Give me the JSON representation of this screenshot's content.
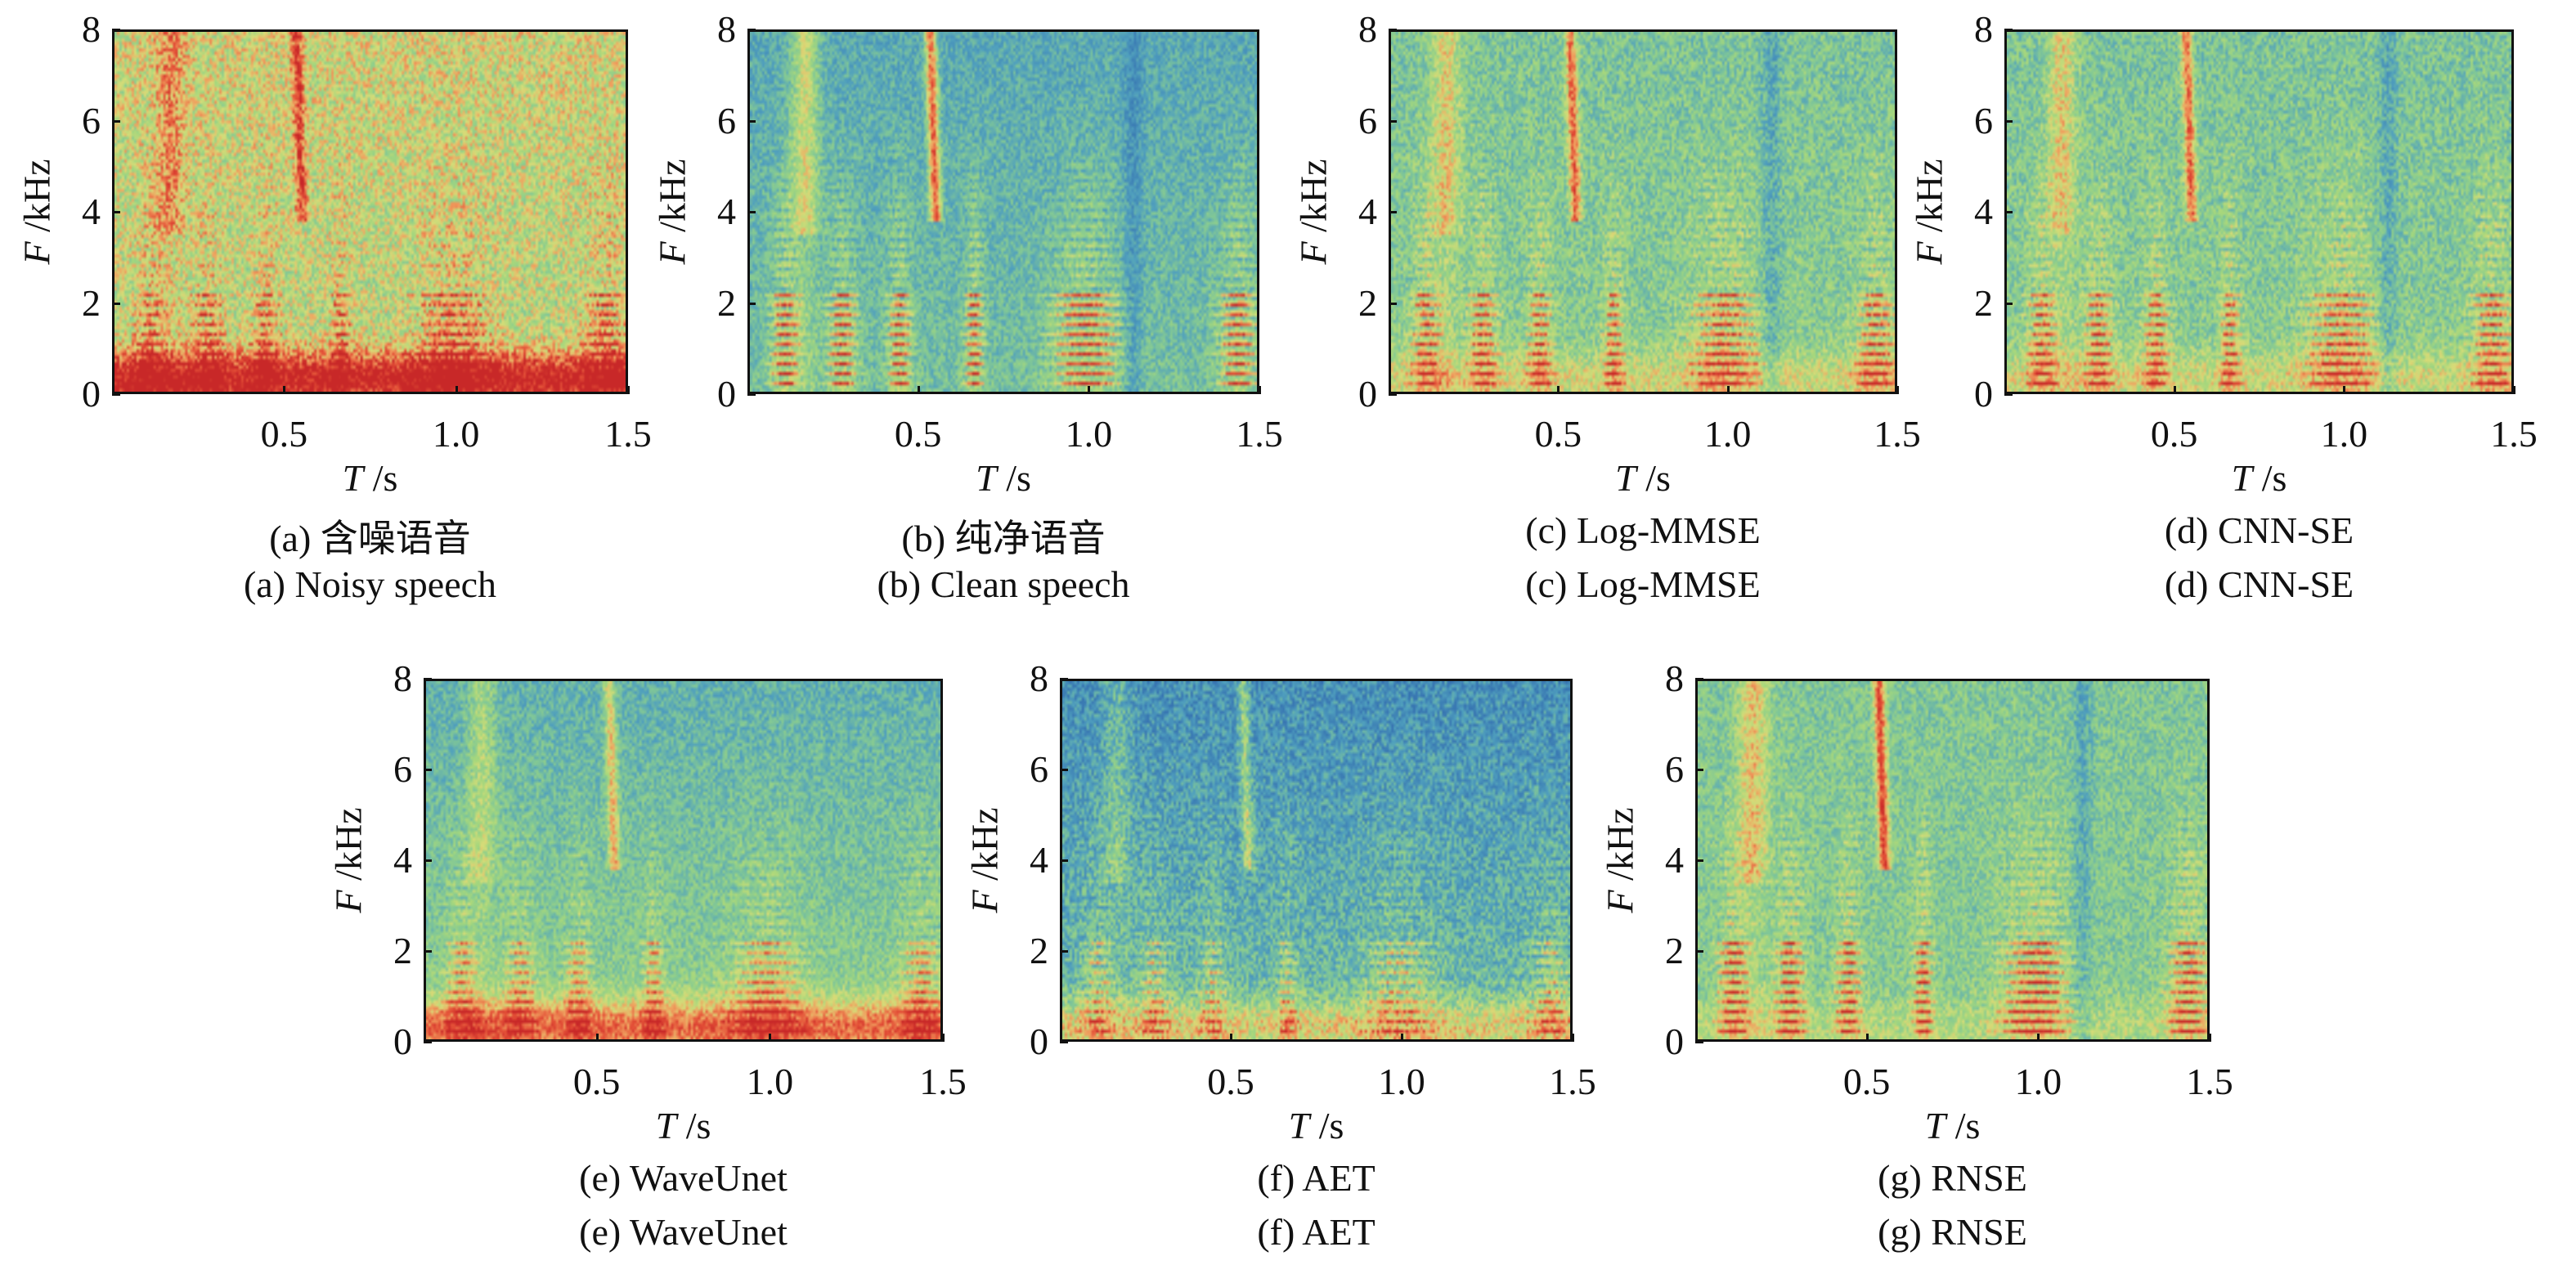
{
  "chart_data": [
    {
      "type": "heatmap",
      "caption_zh": "(a) 含噪语音",
      "caption_en": "(a) Noisy speech",
      "x_var": "T",
      "x_unit": " /s",
      "y_var": "F",
      "y_unit": " /kHz",
      "xlim": [
        0,
        1.5
      ],
      "ylim": [
        0,
        8
      ],
      "xticks": [
        "0.5",
        "1.0",
        "1.5"
      ],
      "yticks": [
        "0",
        "2",
        "4",
        "6",
        "8"
      ],
      "colormap": "spectral (blue-green-yellow-red)"
    },
    {
      "type": "heatmap",
      "caption_zh": "(b) 纯净语音",
      "caption_en": "(b) Clean speech",
      "x_var": "T",
      "x_unit": " /s",
      "y_var": "F",
      "y_unit": " /kHz",
      "xlim": [
        0,
        1.5
      ],
      "ylim": [
        0,
        8
      ],
      "xticks": [
        "0.5",
        "1.0",
        "1.5"
      ],
      "yticks": [
        "0",
        "2",
        "4",
        "6",
        "8"
      ],
      "colormap": "spectral (blue-green-yellow-red)"
    },
    {
      "type": "heatmap",
      "caption_zh": "(c) Log-MMSE",
      "caption_en": "(c) Log-MMSE",
      "x_var": "T",
      "x_unit": " /s",
      "y_var": "F",
      "y_unit": " /kHz",
      "xlim": [
        0,
        1.5
      ],
      "ylim": [
        0,
        8
      ],
      "xticks": [
        "0.5",
        "1.0",
        "1.5"
      ],
      "yticks": [
        "0",
        "2",
        "4",
        "6",
        "8"
      ],
      "colormap": "spectral (blue-green-yellow-red)"
    },
    {
      "type": "heatmap",
      "caption_zh": "(d) CNN-SE",
      "caption_en": "(d) CNN-SE",
      "x_var": "T",
      "x_unit": " /s",
      "y_var": "F",
      "y_unit": " /kHz",
      "xlim": [
        0,
        1.5
      ],
      "ylim": [
        0,
        8
      ],
      "xticks": [
        "0.5",
        "1.0",
        "1.5"
      ],
      "yticks": [
        "0",
        "2",
        "4",
        "6",
        "8"
      ],
      "colormap": "spectral (blue-green-yellow-red)"
    },
    {
      "type": "heatmap",
      "caption_zh": "(e) WaveUnet",
      "caption_en": "(e) WaveUnet",
      "x_var": "T",
      "x_unit": " /s",
      "y_var": "F",
      "y_unit": " /kHz",
      "xlim": [
        0,
        1.5
      ],
      "ylim": [
        0,
        8
      ],
      "xticks": [
        "0.5",
        "1.0",
        "1.5"
      ],
      "yticks": [
        "0",
        "2",
        "4",
        "6",
        "8"
      ],
      "colormap": "spectral (blue-green-yellow-red)"
    },
    {
      "type": "heatmap",
      "caption_zh": "(f) AET",
      "caption_en": "(f) AET",
      "x_var": "T",
      "x_unit": " /s",
      "y_var": "F",
      "y_unit": " /kHz",
      "xlim": [
        0,
        1.5
      ],
      "ylim": [
        0,
        8
      ],
      "xticks": [
        "0.5",
        "1.0",
        "1.5"
      ],
      "yticks": [
        "0",
        "2",
        "4",
        "6",
        "8"
      ],
      "colormap": "spectral (blue-green-yellow-red)"
    },
    {
      "type": "heatmap",
      "caption_zh": "(g) RNSE",
      "caption_en": "(g) RNSE",
      "x_var": "T",
      "x_unit": " /s",
      "y_var": "F",
      "y_unit": " /kHz",
      "xlim": [
        0,
        1.5
      ],
      "ylim": [
        0,
        8
      ],
      "xticks": [
        "0.5",
        "1.0",
        "1.5"
      ],
      "yticks": [
        "0",
        "2",
        "4",
        "6",
        "8"
      ],
      "colormap": "spectral (blue-green-yellow-red)"
    }
  ]
}
